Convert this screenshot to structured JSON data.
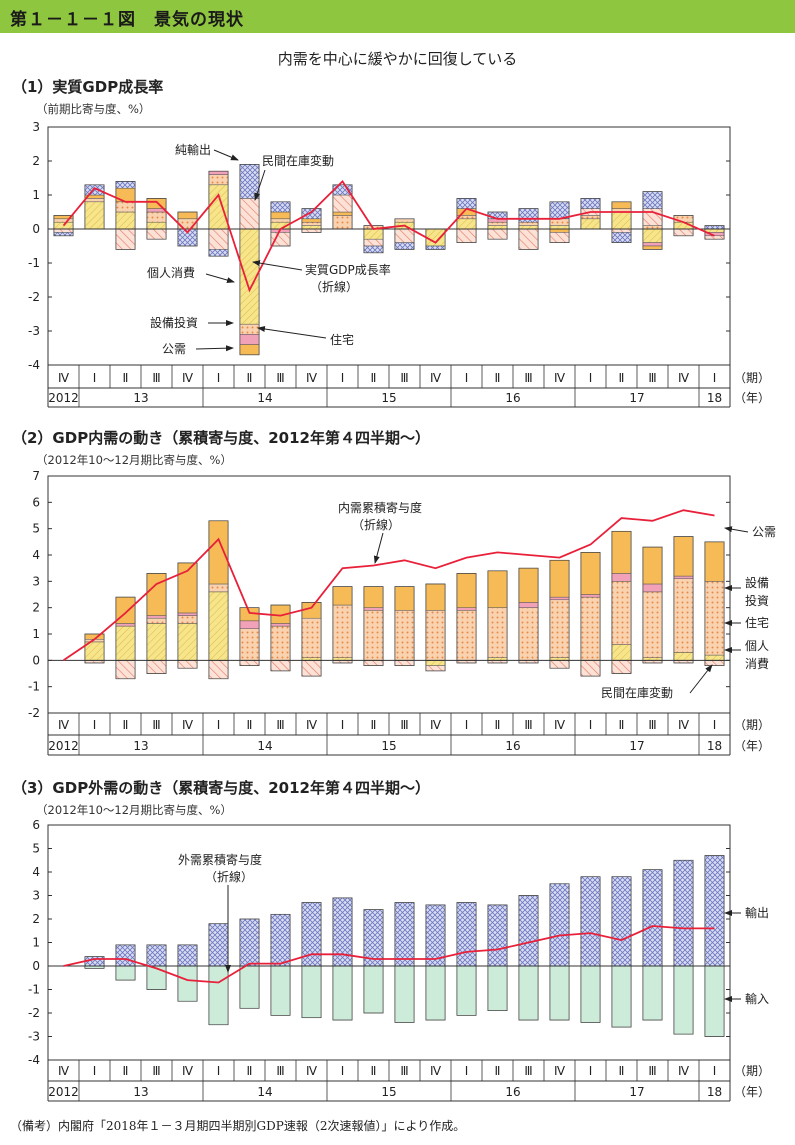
{
  "header": {
    "title": "第１－１－１図　景気の現状"
  },
  "headline": "内需を中心に緩やかに回復している",
  "footnote": "（備考）内閣府「2018年１－３月期四半期別GDP速報（2次速報値）」により作成。",
  "period_unit": "（期）",
  "year_unit": "（年）",
  "quarter_labels": [
    "Ⅳ",
    "Ⅰ",
    "Ⅱ",
    "Ⅲ",
    "Ⅳ",
    "Ⅰ",
    "Ⅱ",
    "Ⅲ",
    "Ⅳ",
    "Ⅰ",
    "Ⅱ",
    "Ⅲ",
    "Ⅳ",
    "Ⅰ",
    "Ⅱ",
    "Ⅲ",
    "Ⅳ",
    "Ⅰ",
    "Ⅱ",
    "Ⅲ",
    "Ⅳ",
    "Ⅰ"
  ],
  "year_labels": [
    "2012",
    "13",
    "14",
    "15",
    "16",
    "17",
    "18"
  ],
  "colors": {
    "private_consumption": "#f6e58a",
    "capex": "#f5b887",
    "housing": "#f2a2b8",
    "public": "#f6bb57",
    "inventory": "#f2a28d",
    "net_exports": "#9aa4d8",
    "exports": "#9aa4d8",
    "imports": "#a9dcbf",
    "line": "#e8203a",
    "header": "#8ec63f"
  },
  "chart_data": [
    {
      "type": "bar",
      "title": "（1）実質GDP成長率",
      "unit_label": "（前期比寄与度、%）",
      "ylim": [
        -4,
        3
      ],
      "yticks": [
        -4,
        -3,
        -2,
        -1,
        0,
        1,
        2,
        3
      ],
      "categories": [
        "2012-Ⅳ",
        "2013-Ⅰ",
        "2013-Ⅱ",
        "2013-Ⅲ",
        "2013-Ⅳ",
        "2014-Ⅰ",
        "2014-Ⅱ",
        "2014-Ⅲ",
        "2014-Ⅳ",
        "2015-Ⅰ",
        "2015-Ⅱ",
        "2015-Ⅲ",
        "2015-Ⅳ",
        "2016-Ⅰ",
        "2016-Ⅱ",
        "2016-Ⅲ",
        "2016-Ⅳ",
        "2017-Ⅰ",
        "2017-Ⅱ",
        "2017-Ⅲ",
        "2017-Ⅳ",
        "2018-Ⅰ"
      ],
      "series": [
        {
          "name": "個人消費",
          "key": "private_consumption",
          "values": [
            0.2,
            0.8,
            0.5,
            0.2,
            0.0,
            1.3,
            -2.8,
            0.2,
            0.1,
            0.0,
            -0.3,
            0.2,
            -0.5,
            0.3,
            0.1,
            0.1,
            0.1,
            0.3,
            0.5,
            -0.4,
            0.2,
            -0.1
          ]
        },
        {
          "name": "設備投資",
          "key": "capex",
          "values": [
            0.1,
            0.1,
            0.3,
            0.3,
            0.3,
            0.3,
            -0.3,
            0.1,
            0.1,
            0.4,
            0.1,
            0.1,
            0.0,
            0.1,
            0.1,
            0.1,
            0.2,
            0.1,
            0.1,
            0.1,
            0.2,
            0.0
          ]
        },
        {
          "name": "住宅",
          "key": "housing",
          "values": [
            0.0,
            0.0,
            0.0,
            0.1,
            0.0,
            0.1,
            -0.3,
            -0.1,
            0.0,
            0.0,
            0.0,
            0.0,
            0.0,
            0.0,
            0.1,
            0.0,
            0.0,
            0.0,
            0.0,
            -0.1,
            0.0,
            -0.1
          ]
        },
        {
          "name": "公需",
          "key": "public",
          "values": [
            0.1,
            0.1,
            0.4,
            0.3,
            0.2,
            0.0,
            -0.3,
            0.2,
            0.1,
            0.1,
            0.0,
            0.0,
            0.0,
            0.2,
            0.0,
            0.0,
            -0.1,
            0.0,
            0.2,
            -0.1,
            0.0,
            0.0
          ]
        },
        {
          "name": "民間在庫変動",
          "key": "inventory",
          "values": [
            -0.1,
            0.0,
            -0.6,
            -0.3,
            0.0,
            -0.6,
            0.9,
            -0.4,
            -0.1,
            0.5,
            -0.2,
            -0.4,
            0.0,
            -0.4,
            -0.3,
            -0.6,
            -0.3,
            0.2,
            -0.1,
            0.5,
            -0.2,
            -0.1
          ]
        },
        {
          "name": "純輸出",
          "key": "net_exports",
          "values": [
            -0.1,
            0.3,
            0.2,
            0.0,
            -0.5,
            -0.2,
            1.0,
            0.3,
            0.3,
            0.3,
            -0.2,
            -0.2,
            -0.1,
            0.3,
            0.2,
            0.4,
            0.5,
            0.3,
            -0.3,
            0.5,
            0.0,
            0.1
          ]
        },
        {
          "name": "実質GDP成長率（折線）",
          "key": "line",
          "line": true,
          "values": [
            0.1,
            1.2,
            0.8,
            0.8,
            -0.1,
            1.0,
            -1.8,
            0.0,
            0.5,
            1.4,
            0.0,
            0.1,
            -0.4,
            0.6,
            0.3,
            0.3,
            0.3,
            0.5,
            0.5,
            0.5,
            0.2,
            -0.2
          ]
        }
      ]
    },
    {
      "type": "bar",
      "title": "（2）GDP内需の動き（累積寄与度、2012年第４四半期～）",
      "unit_label": "（2012年10～12月期比寄与度、%）",
      "ylim": [
        -2,
        7
      ],
      "yticks": [
        -2,
        -1,
        0,
        1,
        2,
        3,
        4,
        5,
        6,
        7
      ],
      "categories": [
        "2012-Ⅳ",
        "2013-Ⅰ",
        "2013-Ⅱ",
        "2013-Ⅲ",
        "2013-Ⅳ",
        "2014-Ⅰ",
        "2014-Ⅱ",
        "2014-Ⅲ",
        "2014-Ⅳ",
        "2015-Ⅰ",
        "2015-Ⅱ",
        "2015-Ⅲ",
        "2015-Ⅳ",
        "2016-Ⅰ",
        "2016-Ⅱ",
        "2016-Ⅲ",
        "2016-Ⅳ",
        "2017-Ⅰ",
        "2017-Ⅱ",
        "2017-Ⅲ",
        "2017-Ⅳ",
        "2018-Ⅰ"
      ],
      "series": [
        {
          "name": "個人消費",
          "key": "private_consumption",
          "values": [
            0.0,
            0.7,
            1.3,
            1.4,
            1.4,
            2.6,
            0.0,
            0.0,
            0.1,
            0.1,
            0.0,
            0.0,
            -0.2,
            0.0,
            0.1,
            0.0,
            0.1,
            0.0,
            0.6,
            0.1,
            0.3,
            0.2
          ]
        },
        {
          "name": "設備投資",
          "key": "capex",
          "values": [
            0.0,
            0.1,
            0.0,
            0.2,
            0.3,
            0.3,
            1.2,
            1.3,
            1.5,
            2.0,
            1.9,
            1.9,
            1.9,
            1.9,
            1.9,
            2.0,
            2.2,
            2.4,
            2.4,
            2.5,
            2.8,
            2.8
          ]
        },
        {
          "name": "住宅",
          "key": "housing",
          "values": [
            0.0,
            0.0,
            0.1,
            0.1,
            0.1,
            0.0,
            0.3,
            0.1,
            0.0,
            0.0,
            0.1,
            0.0,
            0.0,
            0.1,
            0.0,
            0.2,
            0.1,
            0.1,
            0.3,
            0.3,
            0.1,
            0.0
          ]
        },
        {
          "name": "公需",
          "key": "public",
          "values": [
            0.0,
            0.2,
            1.0,
            1.6,
            1.9,
            2.4,
            0.5,
            0.7,
            0.6,
            0.7,
            0.8,
            0.9,
            1.0,
            1.3,
            1.4,
            1.3,
            1.4,
            1.6,
            1.6,
            1.4,
            1.5,
            1.5
          ]
        },
        {
          "name": "民間在庫変動",
          "key": "inventory",
          "values": [
            0.0,
            -0.1,
            -0.7,
            -0.5,
            -0.3,
            -0.7,
            -0.2,
            -0.4,
            -0.6,
            -0.1,
            -0.2,
            -0.2,
            -0.2,
            -0.1,
            -0.1,
            -0.1,
            -0.3,
            -0.6,
            -0.5,
            -0.1,
            -0.1,
            -0.2
          ]
        },
        {
          "name": "内需累積寄与度（折線）",
          "key": "line",
          "line": true,
          "values": [
            0.0,
            0.8,
            1.8,
            2.9,
            3.4,
            4.6,
            1.8,
            1.7,
            2.0,
            3.5,
            3.6,
            3.8,
            3.5,
            3.9,
            4.1,
            4.0,
            3.9,
            4.4,
            5.4,
            5.3,
            5.7,
            5.5
          ]
        }
      ]
    },
    {
      "type": "bar",
      "title": "（3）GDP外需の動き（累積寄与度、2012年第４四半期～）",
      "unit_label": "（2012年10～12月期比寄与度、%）",
      "ylim": [
        -4,
        6
      ],
      "yticks": [
        -4,
        -3,
        -2,
        -1,
        0,
        1,
        2,
        3,
        4,
        5,
        6
      ],
      "categories": [
        "2012-Ⅳ",
        "2013-Ⅰ",
        "2013-Ⅱ",
        "2013-Ⅲ",
        "2013-Ⅳ",
        "2014-Ⅰ",
        "2014-Ⅱ",
        "2014-Ⅲ",
        "2014-Ⅳ",
        "2015-Ⅰ",
        "2015-Ⅱ",
        "2015-Ⅲ",
        "2015-Ⅳ",
        "2016-Ⅰ",
        "2016-Ⅱ",
        "2016-Ⅲ",
        "2016-Ⅳ",
        "2017-Ⅰ",
        "2017-Ⅱ",
        "2017-Ⅲ",
        "2017-Ⅳ",
        "2018-Ⅰ"
      ],
      "series": [
        {
          "name": "輸出",
          "key": "exports",
          "values": [
            0.0,
            0.4,
            0.9,
            0.9,
            0.9,
            1.8,
            2.0,
            2.2,
            2.7,
            2.9,
            2.4,
            2.7,
            2.6,
            2.7,
            2.6,
            3.0,
            3.5,
            3.8,
            3.8,
            4.1,
            4.5,
            4.7
          ]
        },
        {
          "name": "輸入",
          "key": "imports",
          "values": [
            0.0,
            -0.1,
            -0.6,
            -1.0,
            -1.5,
            -2.5,
            -1.8,
            -2.1,
            -2.2,
            -2.3,
            -2.0,
            -2.4,
            -2.3,
            -2.1,
            -1.9,
            -2.3,
            -2.3,
            -2.4,
            -2.6,
            -2.3,
            -2.9,
            -3.0
          ]
        },
        {
          "name": "外需累積寄与度（折線）",
          "key": "line",
          "line": true,
          "values": [
            0.0,
            0.3,
            0.3,
            -0.1,
            -0.6,
            -0.7,
            0.1,
            0.1,
            0.5,
            0.5,
            0.3,
            0.3,
            0.3,
            0.6,
            0.7,
            1.0,
            1.3,
            1.4,
            1.1,
            1.7,
            1.6,
            1.6
          ]
        }
      ]
    }
  ],
  "annotations": {
    "c1": {
      "net_exports": "純輸出",
      "inventory": "民間在庫変動",
      "consumption": "個人消費",
      "gdp_line_1": "実質GDP成長率",
      "gdp_line_2": "（折線）",
      "capex": "設備投資",
      "housing": "住宅",
      "public": "公需"
    },
    "c2": {
      "line_1": "内需累積寄与度",
      "line_2": "（折線）",
      "public": "公需",
      "capex_1": "設備",
      "capex_2": "投資",
      "housing": "住宅",
      "consumption_1": "個人",
      "consumption_2": "消費",
      "inventory": "民間在庫変動"
    },
    "c3": {
      "line_1": "外需累積寄与度",
      "line_2": "（折線）",
      "exports": "輸出",
      "imports": "輸入"
    }
  }
}
